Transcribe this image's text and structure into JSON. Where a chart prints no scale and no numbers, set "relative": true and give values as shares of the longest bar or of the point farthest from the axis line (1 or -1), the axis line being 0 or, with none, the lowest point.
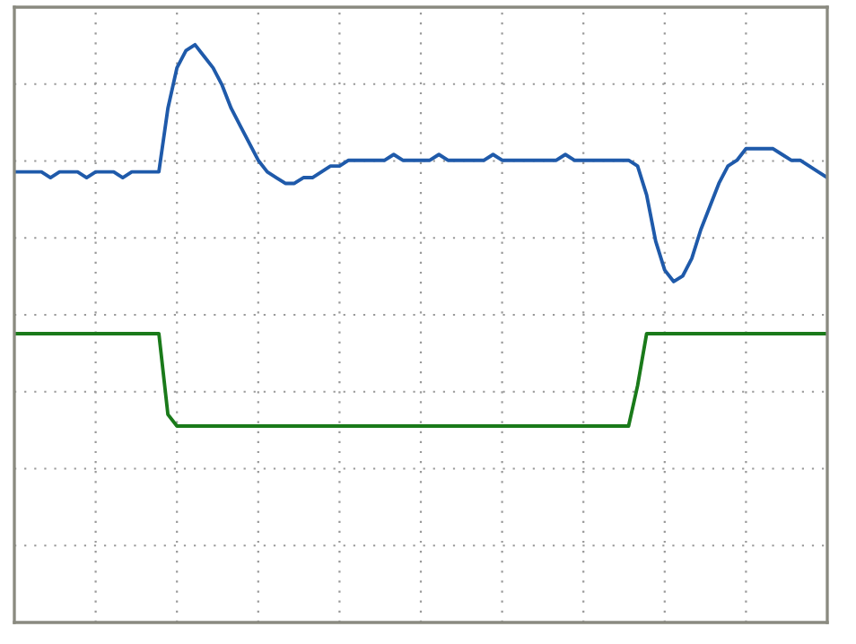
{
  "chart_data": {
    "type": "line",
    "relative": true,
    "grid": true,
    "legend": false,
    "categories": [
      null,
      null,
      null,
      null,
      null,
      null,
      null,
      null,
      null,
      null,
      null,
      null,
      null,
      null,
      null,
      null,
      null,
      null,
      null,
      null,
      null,
      null,
      null,
      null,
      null,
      null,
      null,
      null,
      null,
      null,
      null,
      null,
      null,
      null,
      null,
      null,
      null,
      null,
      null,
      null,
      null,
      null,
      null,
      null,
      null,
      null,
      null,
      null,
      null,
      null,
      null,
      null,
      null,
      null,
      null,
      null,
      null,
      null,
      null,
      null,
      null,
      null,
      null,
      null,
      null,
      null,
      null,
      null,
      null,
      null,
      null,
      null,
      null,
      null,
      null,
      null,
      null,
      null,
      null,
      null,
      null,
      null,
      null,
      null,
      null,
      null,
      null,
      null,
      null,
      null,
      null
    ],
    "series": [
      {
        "color": "#1f5aaa",
        "values": [
          0.78,
          0.78,
          0.78,
          0.78,
          0.77,
          0.78,
          0.78,
          0.78,
          0.77,
          0.78,
          0.78,
          0.78,
          0.77,
          0.78,
          0.78,
          0.78,
          0.78,
          0.89,
          0.96,
          0.99,
          1.0,
          0.98,
          0.96,
          0.93,
          0.89,
          0.86,
          0.83,
          0.8,
          0.78,
          0.77,
          0.76,
          0.76,
          0.77,
          0.77,
          0.78,
          0.79,
          0.79,
          0.8,
          0.8,
          0.8,
          0.8,
          0.8,
          0.81,
          0.8,
          0.8,
          0.8,
          0.8,
          0.81,
          0.8,
          0.8,
          0.8,
          0.8,
          0.8,
          0.81,
          0.8,
          0.8,
          0.8,
          0.8,
          0.8,
          0.8,
          0.8,
          0.81,
          0.8,
          0.8,
          0.8,
          0.8,
          0.8,
          0.8,
          0.8,
          0.79,
          0.74,
          0.66,
          0.61,
          0.59,
          0.6,
          0.63,
          0.68,
          0.72,
          0.76,
          0.79,
          0.8,
          0.82,
          0.82,
          0.82,
          0.82,
          0.81,
          0.8,
          0.8,
          0.79,
          0.78,
          0.77
        ]
      },
      {
        "color": "#1a7a1a",
        "values": [
          0.5,
          0.5,
          0.5,
          0.5,
          0.5,
          0.5,
          0.5,
          0.5,
          0.5,
          0.5,
          0.5,
          0.5,
          0.5,
          0.5,
          0.5,
          0.5,
          0.5,
          0.36,
          0.34,
          0.34,
          0.34,
          0.34,
          0.34,
          0.34,
          0.34,
          0.34,
          0.34,
          0.34,
          0.34,
          0.34,
          0.34,
          0.34,
          0.34,
          0.34,
          0.34,
          0.34,
          0.34,
          0.34,
          0.34,
          0.34,
          0.34,
          0.34,
          0.34,
          0.34,
          0.34,
          0.34,
          0.34,
          0.34,
          0.34,
          0.34,
          0.34,
          0.34,
          0.34,
          0.34,
          0.34,
          0.34,
          0.34,
          0.34,
          0.34,
          0.34,
          0.34,
          0.34,
          0.34,
          0.34,
          0.34,
          0.34,
          0.34,
          0.34,
          0.34,
          0.41,
          0.5,
          0.5,
          0.5,
          0.5,
          0.5,
          0.5,
          0.5,
          0.5,
          0.5,
          0.5,
          0.5,
          0.5,
          0.5,
          0.5,
          0.5,
          0.5,
          0.5,
          0.5,
          0.5,
          0.5,
          0.5
        ]
      }
    ]
  }
}
